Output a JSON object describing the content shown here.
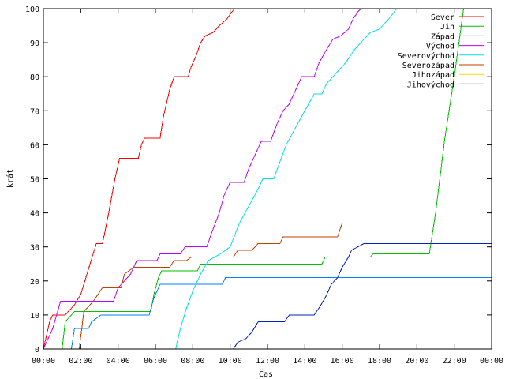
{
  "chart_data": {
    "type": "line",
    "title": "",
    "xlabel": "Čas",
    "ylabel": "krát",
    "xlim": [
      "00:00",
      "24:00"
    ],
    "ylim": [
      0,
      100
    ],
    "grid": false,
    "legend_position": "top-right",
    "x_ticks": [
      "00:00",
      "02:00",
      "04:00",
      "06:00",
      "08:00",
      "10:00",
      "12:00",
      "14:00",
      "16:00",
      "18:00",
      "20:00",
      "22:00",
      "00:00"
    ],
    "y_ticks": [
      0,
      10,
      20,
      30,
      40,
      50,
      60,
      70,
      80,
      90,
      100
    ],
    "series": [
      {
        "name": "Sever",
        "color": "#ff0000",
        "points": [
          [
            "00:00",
            0
          ],
          [
            "00:20",
            8
          ],
          [
            "00:30",
            10
          ],
          [
            "01:10",
            10
          ],
          [
            "01:40",
            13
          ],
          [
            "02:00",
            16
          ],
          [
            "02:20",
            22
          ],
          [
            "02:40",
            28
          ],
          [
            "02:50",
            31
          ],
          [
            "03:10",
            31
          ],
          [
            "03:30",
            40
          ],
          [
            "03:50",
            50
          ],
          [
            "04:05",
            56
          ],
          [
            "05:05",
            56
          ],
          [
            "05:15",
            60
          ],
          [
            "05:25",
            62
          ],
          [
            "06:15",
            62
          ],
          [
            "06:25",
            68
          ],
          [
            "06:45",
            76
          ],
          [
            "07:00",
            80
          ],
          [
            "07:45",
            80
          ],
          [
            "07:55",
            83
          ],
          [
            "08:10",
            86
          ],
          [
            "08:25",
            90
          ],
          [
            "08:40",
            92
          ],
          [
            "09:05",
            93
          ],
          [
            "09:25",
            95
          ],
          [
            "09:50",
            97
          ],
          [
            "10:05",
            99
          ],
          [
            "10:15",
            100
          ]
        ]
      },
      {
        "name": "Jih",
        "color": "#00c000",
        "points": [
          [
            "00:00",
            0
          ],
          [
            "01:00",
            0
          ],
          [
            "01:10",
            8
          ],
          [
            "01:40",
            11
          ],
          [
            "05:45",
            11
          ],
          [
            "05:55",
            16
          ],
          [
            "06:10",
            21
          ],
          [
            "06:20",
            23
          ],
          [
            "08:15",
            23
          ],
          [
            "08:25",
            25
          ],
          [
            "14:55",
            25
          ],
          [
            "15:05",
            27
          ],
          [
            "17:30",
            27
          ],
          [
            "17:40",
            28
          ],
          [
            "20:40",
            28
          ],
          [
            "21:00",
            40
          ],
          [
            "21:30",
            62
          ],
          [
            "22:00",
            80
          ],
          [
            "22:30",
            100
          ]
        ]
      },
      {
        "name": "Západ",
        "color": "#0080ff",
        "points": [
          [
            "00:00",
            0
          ],
          [
            "01:30",
            0
          ],
          [
            "01:40",
            6
          ],
          [
            "02:25",
            6
          ],
          [
            "02:35",
            8
          ],
          [
            "03:05",
            10
          ],
          [
            "05:40",
            10
          ],
          [
            "05:55",
            15
          ],
          [
            "06:15",
            19
          ],
          [
            "09:35",
            19
          ],
          [
            "09:45",
            21
          ],
          [
            "24:00",
            21
          ]
        ]
      },
      {
        "name": "Východ",
        "color": "#c000ff",
        "points": [
          [
            "00:00",
            0
          ],
          [
            "00:30",
            6
          ],
          [
            "00:55",
            14
          ],
          [
            "03:45",
            14
          ],
          [
            "04:00",
            18
          ],
          [
            "04:40",
            22
          ],
          [
            "05:00",
            26
          ],
          [
            "06:05",
            26
          ],
          [
            "06:15",
            28
          ],
          [
            "07:20",
            28
          ],
          [
            "07:35",
            30
          ],
          [
            "08:45",
            30
          ],
          [
            "09:00",
            34
          ],
          [
            "09:25",
            40
          ],
          [
            "09:40",
            45
          ],
          [
            "10:00",
            49
          ],
          [
            "10:45",
            49
          ],
          [
            "11:00",
            53
          ],
          [
            "11:20",
            57
          ],
          [
            "11:40",
            61
          ],
          [
            "12:10",
            61
          ],
          [
            "12:30",
            66
          ],
          [
            "12:50",
            70
          ],
          [
            "13:10",
            72
          ],
          [
            "13:30",
            76
          ],
          [
            "13:50",
            80
          ],
          [
            "14:30",
            80
          ],
          [
            "14:45",
            84
          ],
          [
            "15:10",
            88
          ],
          [
            "15:30",
            91
          ],
          [
            "15:55",
            92
          ],
          [
            "16:20",
            94
          ],
          [
            "16:35",
            97
          ],
          [
            "16:50",
            99
          ],
          [
            "17:00",
            100
          ]
        ]
      },
      {
        "name": "Severovýchod",
        "color": "#00e0e0",
        "points": [
          [
            "00:00",
            0
          ],
          [
            "07:05",
            0
          ],
          [
            "07:20",
            6
          ],
          [
            "07:40",
            12
          ],
          [
            "08:00",
            17
          ],
          [
            "08:25",
            22
          ],
          [
            "08:50",
            26
          ],
          [
            "09:30",
            28
          ],
          [
            "10:00",
            30
          ],
          [
            "10:30",
            37
          ],
          [
            "11:00",
            42
          ],
          [
            "11:30",
            47
          ],
          [
            "11:45",
            50
          ],
          [
            "12:20",
            50
          ],
          [
            "12:40",
            55
          ],
          [
            "13:00",
            60
          ],
          [
            "13:30",
            65
          ],
          [
            "14:00",
            70
          ],
          [
            "14:30",
            75
          ],
          [
            "14:55",
            75
          ],
          [
            "15:10",
            78
          ],
          [
            "15:40",
            81
          ],
          [
            "16:10",
            84
          ],
          [
            "16:40",
            88
          ],
          [
            "17:10",
            91
          ],
          [
            "17:30",
            93
          ],
          [
            "18:00",
            94
          ],
          [
            "18:30",
            97
          ],
          [
            "18:55",
            100
          ]
        ]
      },
      {
        "name": "Severozápad",
        "color": "#c04000",
        "points": [
          [
            "00:00",
            0
          ],
          [
            "01:55",
            0
          ],
          [
            "02:10",
            11
          ],
          [
            "02:40",
            14
          ],
          [
            "03:10",
            18
          ],
          [
            "04:10",
            18
          ],
          [
            "04:20",
            22
          ],
          [
            "04:50",
            24
          ],
          [
            "05:20",
            24
          ],
          [
            "05:35",
            24
          ],
          [
            "06:45",
            24
          ],
          [
            "07:00",
            26
          ],
          [
            "07:40",
            26
          ],
          [
            "07:55",
            27
          ],
          [
            "10:10",
            27
          ],
          [
            "10:25",
            29
          ],
          [
            "11:10",
            29
          ],
          [
            "11:30",
            31
          ],
          [
            "12:40",
            31
          ],
          [
            "12:50",
            33
          ],
          [
            "15:45",
            33
          ],
          [
            "16:00",
            37
          ],
          [
            "24:00",
            37
          ],
          [
            "24:00",
            39
          ]
        ]
      },
      {
        "name": "Jihozápad",
        "color": "#ffd700",
        "points": []
      },
      {
        "name": "Jihovýchod",
        "color": "#0020c0",
        "points": [
          [
            "00:00",
            0
          ],
          [
            "10:10",
            0
          ],
          [
            "10:25",
            2
          ],
          [
            "10:50",
            3
          ],
          [
            "11:10",
            5
          ],
          [
            "11:30",
            8
          ],
          [
            "12:55",
            8
          ],
          [
            "13:10",
            10
          ],
          [
            "14:30",
            10
          ],
          [
            "14:45",
            12
          ],
          [
            "15:05",
            15
          ],
          [
            "15:25",
            19
          ],
          [
            "15:45",
            21
          ],
          [
            "16:00",
            24
          ],
          [
            "16:20",
            27
          ],
          [
            "16:30",
            29
          ],
          [
            "16:50",
            30
          ],
          [
            "17:10",
            31
          ],
          [
            "24:00",
            31
          ]
        ]
      }
    ]
  }
}
